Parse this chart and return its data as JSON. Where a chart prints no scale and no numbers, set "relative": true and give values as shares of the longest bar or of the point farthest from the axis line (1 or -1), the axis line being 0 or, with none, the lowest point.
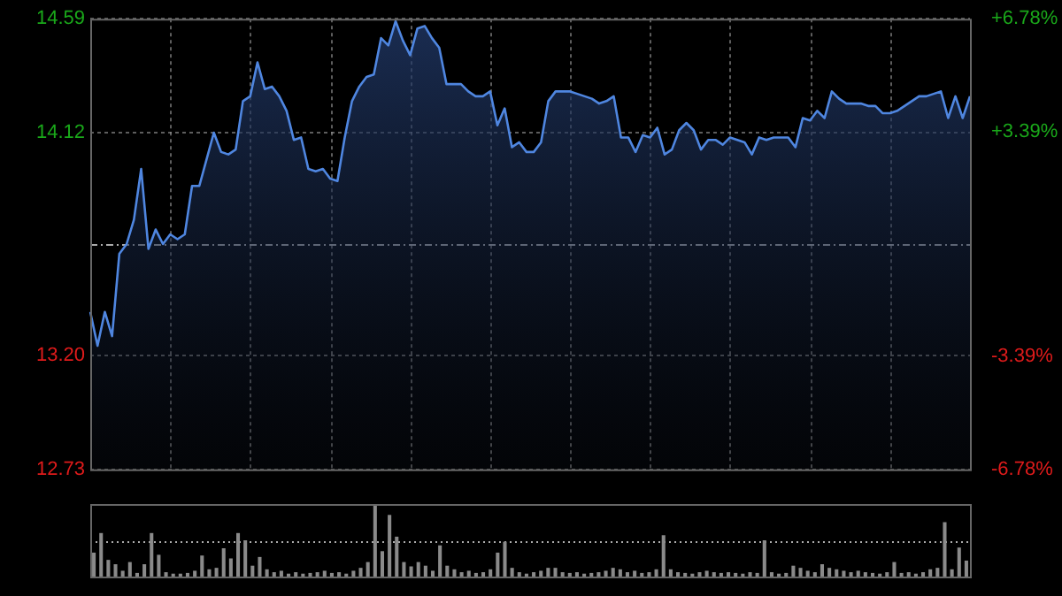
{
  "chart_data": [
    {
      "type": "area",
      "categories": [
        null,
        null,
        null,
        null,
        null,
        null,
        null,
        null,
        null,
        null,
        null,
        null,
        null,
        null,
        null,
        null,
        null,
        null,
        null,
        null,
        null,
        null,
        null,
        null,
        null,
        null,
        null,
        null,
        null,
        null,
        null,
        null,
        null,
        null,
        null,
        null,
        null,
        null,
        null,
        null,
        null,
        null,
        null,
        null,
        null,
        null,
        null,
        null,
        null,
        null,
        null,
        null,
        null,
        null,
        null,
        null,
        null,
        null,
        null,
        null,
        null,
        null,
        null,
        null,
        null,
        null,
        null,
        null,
        null,
        null,
        null,
        null,
        null,
        null,
        null,
        null,
        null,
        null,
        null,
        null,
        null,
        null,
        null,
        null,
        null,
        null,
        null,
        null,
        null,
        null,
        null,
        null,
        null,
        null,
        null,
        null,
        null,
        null,
        null,
        null,
        null,
        null,
        null,
        null,
        null,
        null,
        null,
        null,
        null,
        null,
        null,
        null,
        null,
        null,
        null,
        null,
        null,
        null,
        null,
        null,
        null,
        null
      ],
      "series": [
        {
          "color": "#4f86e0",
          "values": [
            13.38,
            13.24,
            13.38,
            13.28,
            13.62,
            13.66,
            13.76,
            13.97,
            13.64,
            13.72,
            13.66,
            13.7,
            13.68,
            13.7,
            13.9,
            13.9,
            14.01,
            14.12,
            14.04,
            14.03,
            14.05,
            14.25,
            14.27,
            14.41,
            14.3,
            14.31,
            14.27,
            14.21,
            14.09,
            14.1,
            13.97,
            13.96,
            13.97,
            13.93,
            13.92,
            14.1,
            14.25,
            14.31,
            14.35,
            14.36,
            14.51,
            14.48,
            14.58,
            14.5,
            14.44,
            14.55,
            14.56,
            14.51,
            14.47,
            14.32,
            14.32,
            14.32,
            14.29,
            14.27,
            14.27,
            14.29,
            14.15,
            14.22,
            14.06,
            14.08,
            14.04,
            14.04,
            14.08,
            14.25,
            14.29,
            14.29,
            14.29,
            14.28,
            14.27,
            14.26,
            14.24,
            14.25,
            14.27,
            14.1,
            14.1,
            14.04,
            14.11,
            14.1,
            14.14,
            14.03,
            14.05,
            14.13,
            14.16,
            14.13,
            14.05,
            14.09,
            14.09,
            14.07,
            14.1,
            14.09,
            14.08,
            14.03,
            14.1,
            14.09,
            14.1,
            14.1,
            14.1,
            14.06,
            14.18,
            14.17,
            14.21,
            14.18,
            14.29,
            14.26,
            14.24,
            14.24,
            14.24,
            14.23,
            14.23,
            14.2,
            14.2,
            14.21,
            14.23,
            14.25,
            14.27,
            14.27,
            14.28,
            14.29,
            14.18,
            14.27,
            14.18,
            14.27
          ]
        }
      ],
      "ylim": [
        12.73,
        14.59
      ],
      "yticks": [
        12.73,
        {
          "value": 13.2,
          "label": "13.20"
        },
        14.12,
        14.59
      ],
      "y2lim": [
        -6.78,
        6.78
      ],
      "y2ticks": [
        {
          "value": -6.78,
          "label": "-6.78%"
        },
        {
          "value": -3.39,
          "label": "-3.39%"
        },
        {
          "value": 3.39,
          "label": "+3.39%"
        },
        {
          "value": 6.78,
          "label": "+6.78%"
        }
      ],
      "ref_lines": [
        {
          "axis": "y",
          "value": 13.66
        }
      ],
      "grid": true,
      "legend": false
    },
    {
      "type": "bar",
      "relative": true,
      "categories": [
        null,
        null,
        null,
        null,
        null,
        null,
        null,
        null,
        null,
        null,
        null,
        null,
        null,
        null,
        null,
        null,
        null,
        null,
        null,
        null,
        null,
        null,
        null,
        null,
        null,
        null,
        null,
        null,
        null,
        null,
        null,
        null,
        null,
        null,
        null,
        null,
        null,
        null,
        null,
        null,
        null,
        null,
        null,
        null,
        null,
        null,
        null,
        null,
        null,
        null,
        null,
        null,
        null,
        null,
        null,
        null,
        null,
        null,
        null,
        null,
        null,
        null,
        null,
        null,
        null,
        null,
        null,
        null,
        null,
        null,
        null,
        null,
        null,
        null,
        null,
        null,
        null,
        null,
        null,
        null,
        null,
        null,
        null,
        null,
        null,
        null,
        null,
        null,
        null,
        null,
        null,
        null,
        null,
        null,
        null,
        null,
        null,
        null,
        null,
        null,
        null,
        null,
        null,
        null,
        null,
        null,
        null,
        null,
        null,
        null,
        null,
        null,
        null,
        null,
        null,
        null,
        null,
        null,
        null,
        null,
        null,
        null
      ],
      "series": [
        {
          "color": "#8a8a8a",
          "values": [
            0.33,
            0.6,
            0.23,
            0.17,
            0.08,
            0.2,
            0.05,
            0.17,
            0.6,
            0.3,
            0.06,
            0.04,
            0.04,
            0.05,
            0.08,
            0.29,
            0.1,
            0.12,
            0.39,
            0.25,
            0.6,
            0.5,
            0.15,
            0.27,
            0.1,
            0.06,
            0.08,
            0.04,
            0.06,
            0.04,
            0.05,
            0.06,
            0.08,
            0.05,
            0.06,
            0.04,
            0.08,
            0.12,
            0.2,
            1,
            0.35,
            0.85,
            0.55,
            0.2,
            0.14,
            0.2,
            0.15,
            0.08,
            0.43,
            0.15,
            0.1,
            0.06,
            0.08,
            0.05,
            0.06,
            0.1,
            0.33,
            0.48,
            0.12,
            0.06,
            0.04,
            0.06,
            0.08,
            0.12,
            0.12,
            0.06,
            0.05,
            0.06,
            0.04,
            0.05,
            0.06,
            0.08,
            0.12,
            0.1,
            0.06,
            0.08,
            0.05,
            0.06,
            0.1,
            0.57,
            0.1,
            0.06,
            0.05,
            0.04,
            0.06,
            0.08,
            0.06,
            0.05,
            0.06,
            0.05,
            0.04,
            0.06,
            0.05,
            0.5,
            0.06,
            0.04,
            0.05,
            0.15,
            0.12,
            0.08,
            0.06,
            0.17,
            0.12,
            0.1,
            0.08,
            0.06,
            0.08,
            0.06,
            0.05,
            0.04,
            0.06,
            0.2,
            0.05,
            0.06,
            0.04,
            0.06,
            0.1,
            0.12,
            0.75,
            0.1,
            0.4,
            0.22
          ]
        }
      ],
      "ref_lines": [
        {
          "axis": "y",
          "value": 0.5,
          "line_style": "dotted"
        }
      ],
      "legend": false
    }
  ]
}
